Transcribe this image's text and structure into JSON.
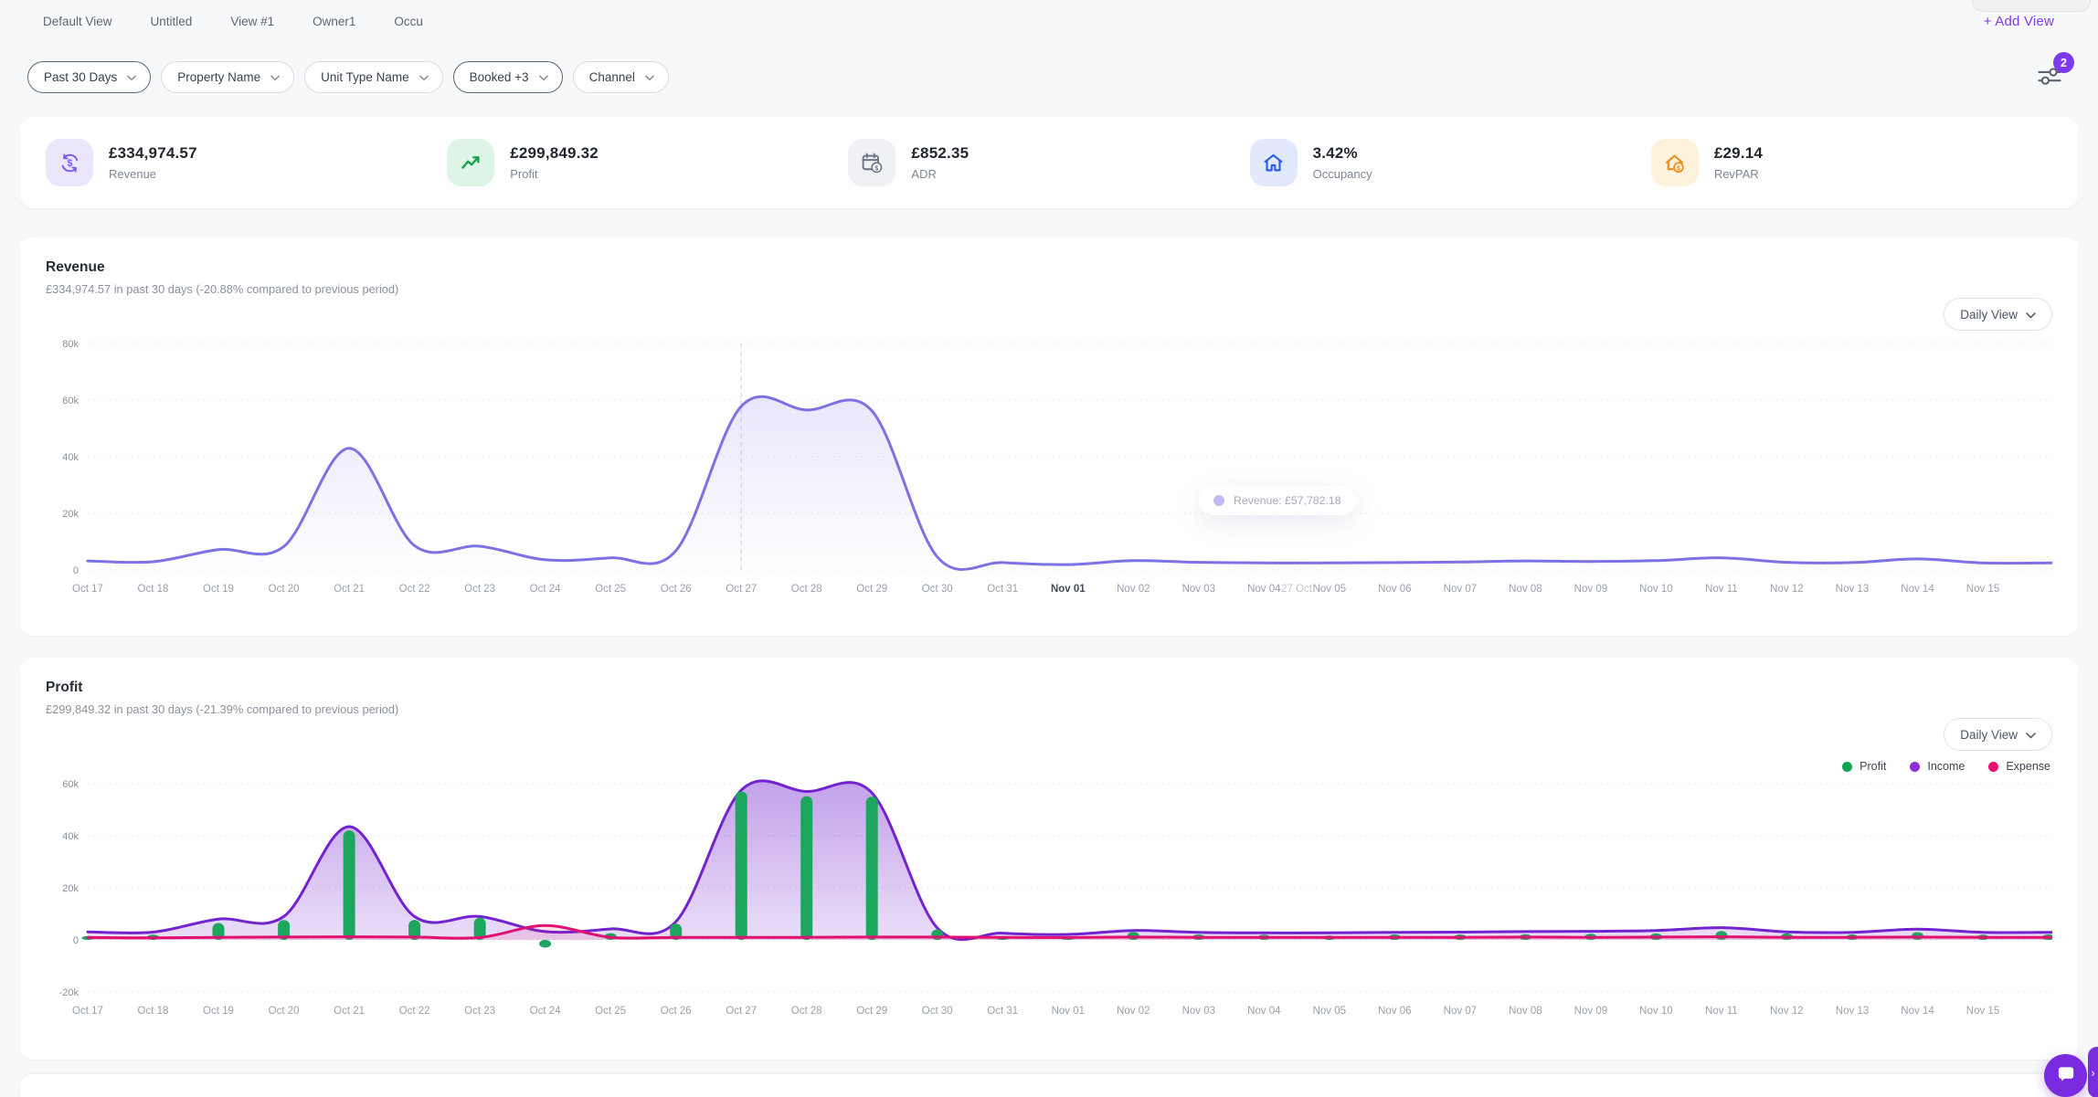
{
  "colors": {
    "accent": "#7c3aed",
    "revenue_line": "#7e71e3",
    "profit_green": "#1da75e",
    "income_purple": "#7223cf",
    "expense_pink": "#e01170"
  },
  "view_tabs": {
    "tabs": [
      {
        "label": "Default View"
      },
      {
        "label": "Untitled"
      },
      {
        "label": "View #1"
      },
      {
        "label": "Owner1"
      },
      {
        "label": "Occu"
      }
    ],
    "add_view_label": "+ Add View"
  },
  "filter_bar": {
    "filters": [
      {
        "label": "Past 30 Days",
        "emphasized": true
      },
      {
        "label": "Property Name",
        "emphasized": false
      },
      {
        "label": "Unit Type Name",
        "emphasized": false
      },
      {
        "label": "Booked +3",
        "emphasized": true
      },
      {
        "label": "Channel",
        "emphasized": false
      }
    ],
    "settings_badge": "2"
  },
  "kpi_cards": [
    {
      "value": "£334,974.57",
      "label": "Revenue",
      "icon": "currency-exchange-icon",
      "icon_bg": "#ece6fb",
      "icon_color": "#7b5af0"
    },
    {
      "value": "£299,849.32",
      "label": "Profit",
      "icon": "trend-up-icon",
      "icon_bg": "#def4e6",
      "icon_color": "#17a24b"
    },
    {
      "value": "£852.35",
      "label": "ADR",
      "icon": "calendar-currency-icon",
      "icon_bg": "#f0f1f4",
      "icon_color": "#6b7584"
    },
    {
      "value": "3.42%",
      "label": "Occupancy",
      "icon": "house-icon",
      "icon_bg": "#e2e9fc",
      "icon_color": "#2d5ce6"
    },
    {
      "value": "£29.14",
      "label": "RevPAR",
      "icon": "house-currency-icon",
      "icon_bg": "#fdf3dc",
      "icon_color": "#f08c1a"
    }
  ],
  "chart_data": [
    {
      "type": "area",
      "title": "Revenue",
      "subtitle": "£334,974.57 in past 30 days (-20.88% compared to previous period)",
      "view_selector": "Daily View",
      "ylim": [
        0,
        80000
      ],
      "yticks": [
        "80k",
        "60k",
        "40k",
        "20k",
        "0"
      ],
      "categories": [
        "Oct 17",
        "Oct 18",
        "Oct 19",
        "Oct 20",
        "Oct 21",
        "Oct 22",
        "Oct 23",
        "Oct 24",
        "Oct 25",
        "Oct 26",
        "Oct 27",
        "Oct 28",
        "Oct 29",
        "Oct 30",
        "Oct 31",
        "Nov 01",
        "Nov 02",
        "Nov 03",
        "Nov 04",
        "Nov 05",
        "Nov 06",
        "Nov 07",
        "Nov 08",
        "Nov 09",
        "Nov 10",
        "Nov 11",
        "Nov 12",
        "Nov 13",
        "Nov 14",
        "Nov 15"
      ],
      "bold_category": "Nov 01",
      "crosshair_index": 10,
      "hover_axis_label": "27 Oct",
      "tooltip": "Revenue: £57,782.18",
      "series": [
        {
          "name": "Revenue",
          "type": "line",
          "color": "#7e71e3",
          "fill": [
            0.22,
            0.01
          ],
          "values": [
            3200,
            2900,
            7200,
            8300,
            43000,
            8600,
            8400,
            3600,
            4300,
            6800,
            57782,
            56500,
            56200,
            4600,
            2600,
            1900,
            3300,
            2700,
            2500,
            2500,
            2600,
            2800,
            3200,
            3000,
            3300,
            4300,
            2700,
            2600,
            3900,
            2500
          ]
        }
      ]
    },
    {
      "type": "bar+line",
      "title": "Profit",
      "subtitle": "£299,849.32 in past 30 days (-21.39% compared to previous period)",
      "view_selector": "Daily View",
      "ylim": [
        -20000,
        60000
      ],
      "yticks": [
        "60k",
        "40k",
        "20k",
        "0",
        "-20k"
      ],
      "categories": [
        "Oct 17",
        "Oct 18",
        "Oct 19",
        "Oct 20",
        "Oct 21",
        "Oct 22",
        "Oct 23",
        "Oct 24",
        "Oct 25",
        "Oct 26",
        "Oct 27",
        "Oct 28",
        "Oct 29",
        "Oct 30",
        "Oct 31",
        "Nov 01",
        "Nov 02",
        "Nov 03",
        "Nov 04",
        "Nov 05",
        "Nov 06",
        "Nov 07",
        "Nov 08",
        "Nov 09",
        "Nov 10",
        "Nov 11",
        "Nov 12",
        "Nov 13",
        "Nov 14",
        "Nov 15"
      ],
      "legend": [
        {
          "name": "Profit",
          "color": "#12a150"
        },
        {
          "name": "Income",
          "color": "#8c2fd9"
        },
        {
          "name": "Expense",
          "color": "#e8126e"
        }
      ],
      "edge_bar_value": 2100,
      "series": [
        {
          "name": "Income",
          "type": "line",
          "color": "#7223cf",
          "fill": [
            0.42,
            0.06
          ],
          "values": [
            3100,
            3000,
            8000,
            9000,
            43500,
            9000,
            9000,
            3200,
            4200,
            7000,
            57500,
            57000,
            56500,
            4600,
            2600,
            2100,
            3600,
            2900,
            2700,
            2700,
            2900,
            3000,
            3200,
            3300,
            3600,
            4700,
            3100,
            2900,
            4100,
            2900
          ]
        },
        {
          "name": "Profit",
          "type": "bar",
          "color": "#1da75e",
          "values": [
            1500,
            2000,
            6500,
            7600,
            42000,
            7600,
            8500,
            -3000,
            2600,
            6200,
            57000,
            55200,
            55000,
            4000,
            1200,
            1000,
            3100,
            2100,
            2000,
            1700,
            2100,
            2100,
            2200,
            2400,
            2500,
            3400,
            2500,
            2100,
            3000,
            2000
          ]
        },
        {
          "name": "Expense",
          "type": "line",
          "color": "#e01170",
          "fill": [
            0.15,
            0.12
          ],
          "values": [
            900,
            800,
            1000,
            1100,
            1200,
            1100,
            900,
            5500,
            1000,
            1000,
            1000,
            1000,
            1100,
            1100,
            1000,
            900,
            1100,
            1000,
            1000,
            1000,
            1000,
            1000,
            1100,
            1000,
            1100,
            1200,
            1000,
            1000,
            1100,
            1000
          ]
        }
      ]
    }
  ],
  "chat": {
    "edge_pill_glyph": "›"
  }
}
